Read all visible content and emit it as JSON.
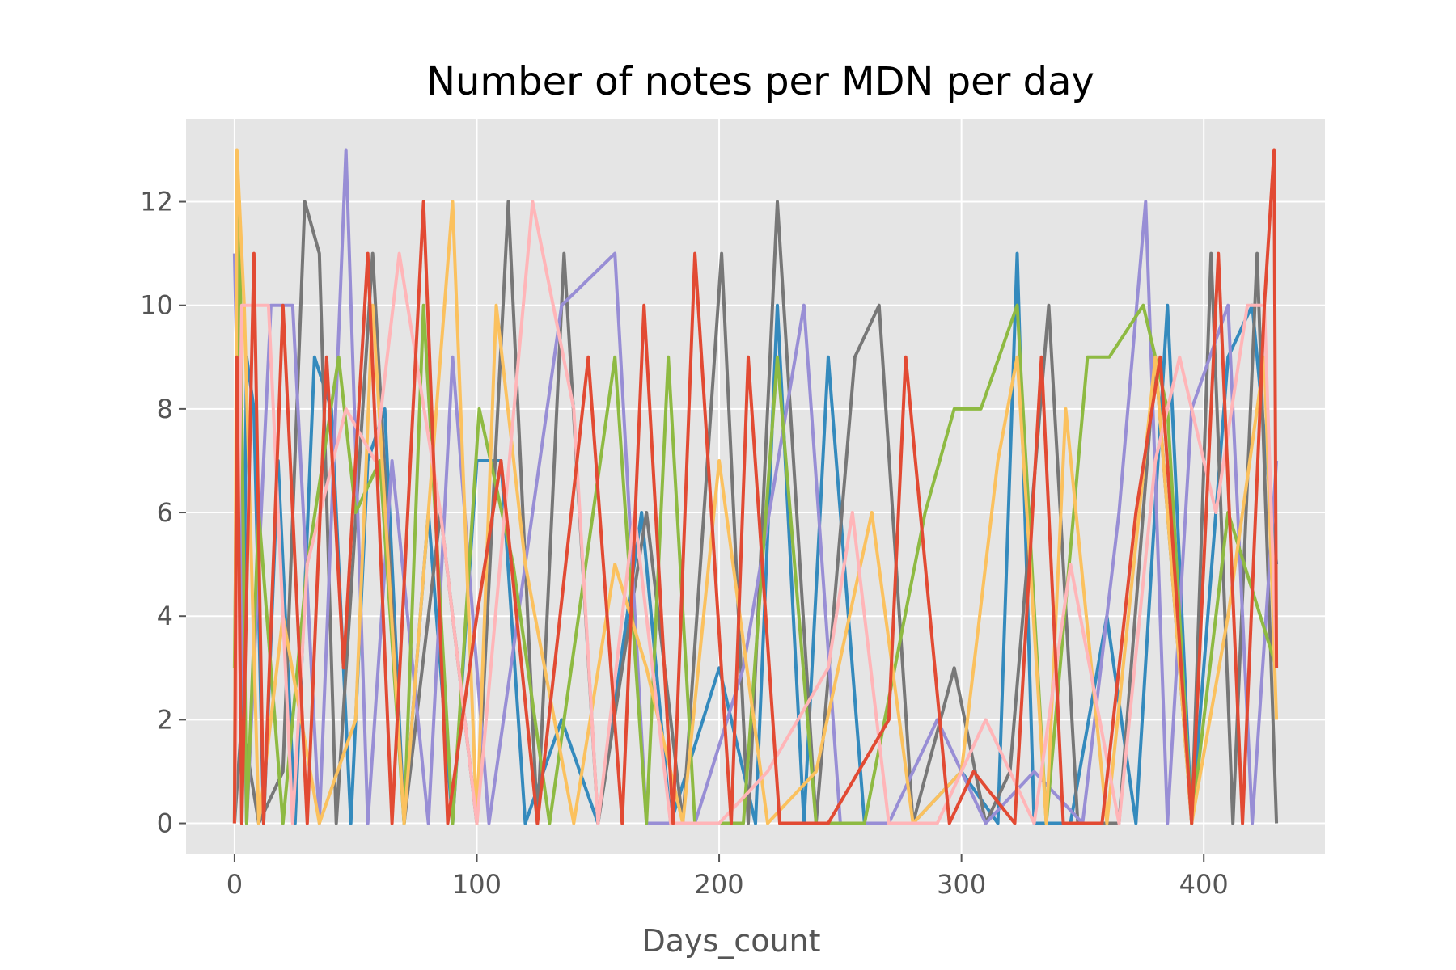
{
  "chart_data": {
    "type": "line",
    "title": "Number of notes per MDN per day",
    "xlabel": "Days_count",
    "ylabel": "",
    "xlim": [
      -20,
      450
    ],
    "ylim": [
      -0.6,
      13.6
    ],
    "x_ticks": [
      0,
      100,
      200,
      300,
      400
    ],
    "y_ticks": [
      0,
      2,
      4,
      6,
      8,
      10,
      12
    ],
    "grid": true,
    "legend": "none",
    "background": "#E5E5E5",
    "grid_color": "#FFFFFF",
    "x_range_of_series": [
      0,
      430
    ],
    "series": [
      {
        "color": "#348ABD",
        "x": [
          0,
          1,
          2,
          3,
          5,
          8,
          12,
          18,
          25,
          33,
          40,
          48,
          55,
          62,
          70,
          80,
          90,
          100,
          110,
          120,
          135,
          150,
          168,
          180,
          200,
          215,
          224,
          235,
          245,
          260,
          280,
          300,
          315,
          323,
          330,
          345,
          360,
          372,
          385,
          395,
          410,
          420,
          430
        ],
        "y": [
          0,
          11,
          9,
          0,
          9,
          8,
          0,
          7,
          0,
          9,
          8,
          0,
          7,
          8,
          0,
          6,
          0,
          7,
          7,
          0,
          2,
          0,
          6,
          0,
          3,
          0,
          10,
          0,
          9,
          0,
          0,
          1,
          0,
          11,
          0,
          0,
          4,
          0,
          10,
          0,
          9,
          10,
          5
        ]
      },
      {
        "color": "#777777",
        "x": [
          0,
          3,
          10,
          20,
          29,
          35,
          42,
          57,
          70,
          85,
          100,
          113,
          125,
          136,
          150,
          170,
          185,
          201,
          212,
          224,
          240,
          256,
          266,
          280,
          297,
          310,
          320,
          336,
          348,
          365,
          380,
          395,
          403,
          412,
          422,
          430
        ],
        "y": [
          0,
          2,
          0,
          1,
          12,
          11,
          0,
          11,
          0,
          6,
          0,
          12,
          0,
          11,
          0,
          6,
          0,
          11,
          0,
          12,
          0,
          9,
          10,
          0,
          3,
          0,
          1,
          10,
          0,
          0,
          9,
          0,
          11,
          0,
          11,
          0
        ]
      },
      {
        "color": "#988ED5",
        "x": [
          0,
          5,
          15,
          24,
          35,
          46,
          55,
          65,
          80,
          90,
          105,
          120,
          135,
          157,
          170,
          190,
          210,
          235,
          250,
          270,
          290,
          310,
          330,
          350,
          365,
          376,
          385,
          395,
          410,
          420,
          430
        ],
        "y": [
          11,
          0,
          10,
          10,
          0,
          13,
          0,
          7,
          0,
          9,
          0,
          5,
          10,
          11,
          0,
          0,
          3,
          10,
          0,
          0,
          2,
          0,
          1,
          0,
          6,
          12,
          0,
          8,
          10,
          0,
          7
        ]
      },
      {
        "color": "#8EBA42",
        "x": [
          0,
          2,
          5,
          10,
          20,
          30,
          43,
          50,
          60,
          70,
          78,
          90,
          101,
          115,
          130,
          157,
          170,
          179,
          190,
          210,
          224,
          240,
          260,
          285,
          297,
          308,
          323,
          335,
          352,
          361,
          375,
          385,
          395,
          410,
          430
        ],
        "y": [
          3,
          12,
          0,
          6,
          0,
          5,
          9,
          6,
          7,
          0,
          10,
          0,
          8,
          5,
          0,
          9,
          0,
          9,
          0,
          0,
          9,
          0,
          0,
          6,
          8,
          8,
          10,
          0,
          9,
          9,
          10,
          8,
          0,
          6,
          3
        ]
      },
      {
        "color": "#FBC15E",
        "x": [
          0,
          1,
          4,
          10,
          20,
          35,
          50,
          57,
          70,
          90,
          100,
          108,
          120,
          140,
          157,
          170,
          185,
          200,
          220,
          240,
          263,
          280,
          300,
          315,
          323,
          335,
          343,
          360,
          380,
          395,
          410,
          425,
          430
        ],
        "y": [
          0,
          13,
          10,
          0,
          4,
          0,
          2,
          10,
          0,
          12,
          0,
          10,
          5,
          0,
          5,
          3,
          0,
          7,
          0,
          1,
          6,
          0,
          1,
          7,
          9,
          0,
          8,
          0,
          9,
          0,
          4,
          9,
          2
        ]
      },
      {
        "color": "#FFB5B8",
        "x": [
          0,
          3,
          14,
          24,
          30,
          46,
          58,
          68,
          85,
          100,
          123,
          140,
          150,
          165,
          180,
          200,
          220,
          245,
          255,
          270,
          290,
          310,
          330,
          345,
          365,
          380,
          390,
          405,
          418,
          425,
          430
        ],
        "y": [
          0,
          10,
          10,
          0,
          5,
          8,
          7,
          11,
          6,
          0,
          12,
          8,
          0,
          6,
          0,
          0,
          1,
          3,
          6,
          0,
          0,
          2,
          0,
          5,
          0,
          7,
          9,
          6,
          10,
          10,
          3
        ]
      },
      {
        "color": "#E24A33",
        "x": [
          0,
          1,
          3,
          8,
          12,
          20,
          30,
          38,
          45,
          55,
          65,
          78,
          88,
          100,
          110,
          125,
          146,
          160,
          169,
          181,
          190,
          205,
          212,
          225,
          245,
          270,
          277,
          295,
          305,
          322,
          333,
          342,
          358,
          372,
          382,
          395,
          406,
          416,
          425,
          429,
          430
        ],
        "y": [
          0,
          9,
          0,
          11,
          0,
          10,
          0,
          9,
          3,
          11,
          0,
          12,
          0,
          4,
          7,
          0,
          9,
          0,
          10,
          0,
          11,
          0,
          9,
          0,
          0,
          2,
          9,
          0,
          1,
          0,
          9,
          0,
          0,
          6,
          9,
          0,
          11,
          0,
          10,
          13,
          3
        ]
      }
    ]
  }
}
